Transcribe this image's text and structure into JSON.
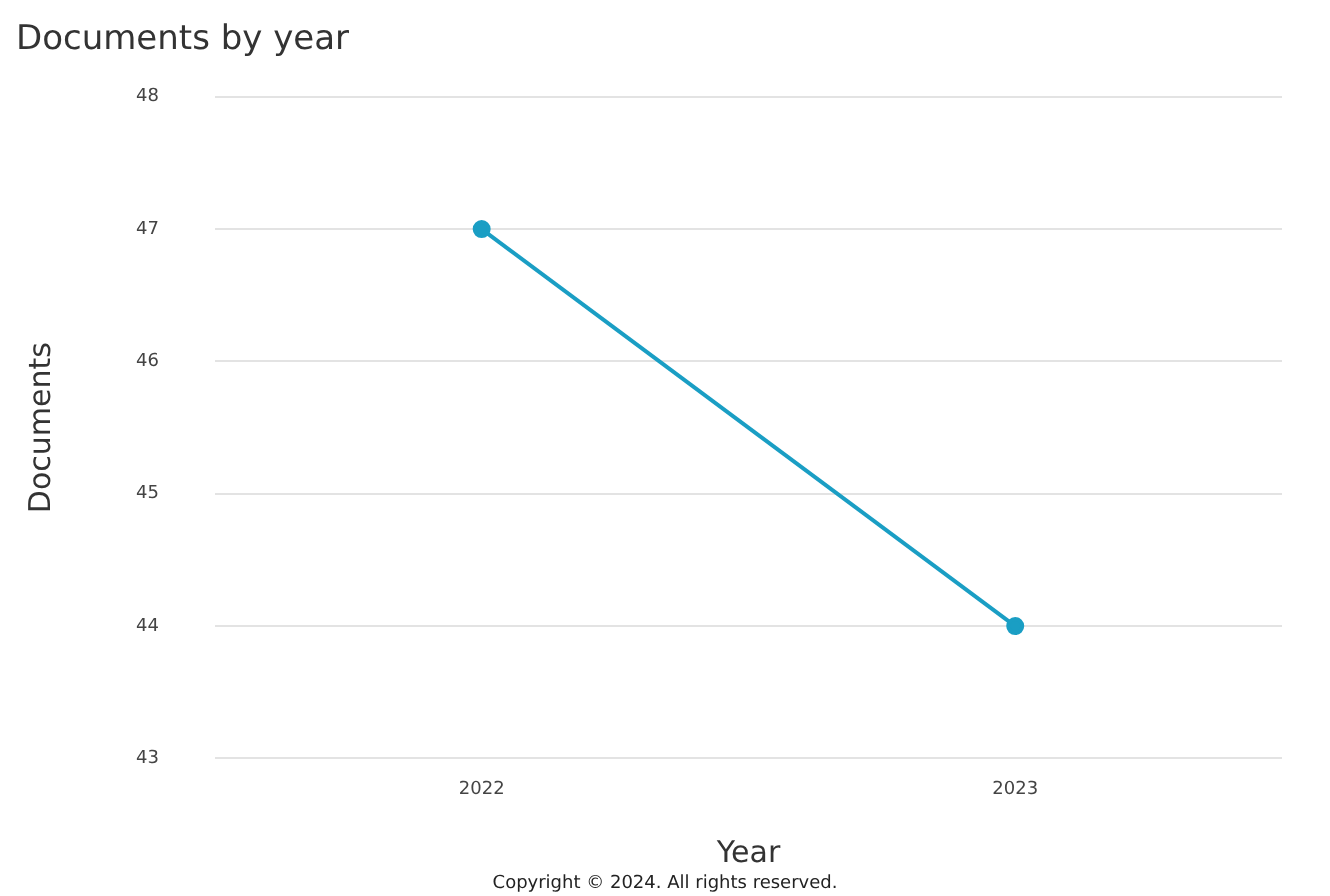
{
  "chart_data": {
    "type": "line",
    "title": "Documents by year",
    "xlabel": "Year",
    "ylabel": "Documents",
    "categories": [
      "2022",
      "2023"
    ],
    "series": [
      {
        "color": "#1a9ec4",
        "values": [
          47,
          44
        ]
      }
    ],
    "ylim": [
      43,
      48
    ],
    "yticks": [
      43,
      44,
      45,
      46,
      47,
      48
    ],
    "grid": "y",
    "legend": false,
    "marker": "circle",
    "line_style": "solid",
    "annotations": [
      "Copyright © 2024. All rights reserved."
    ]
  }
}
